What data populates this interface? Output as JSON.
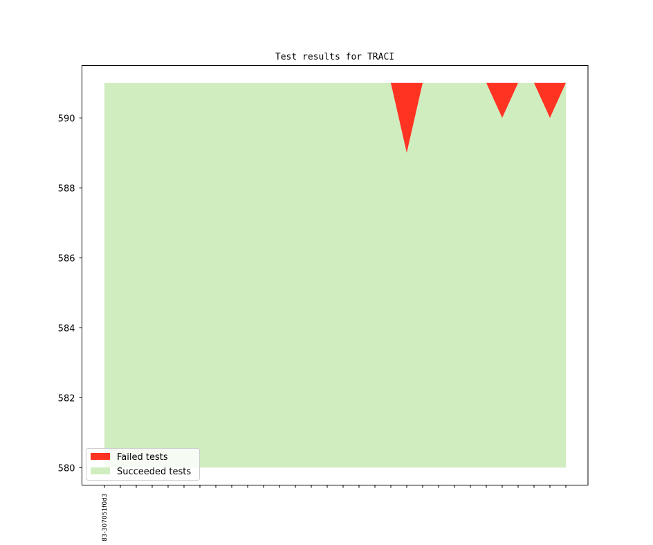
{
  "chart_data": {
    "type": "area",
    "title": "Test results for TRACI",
    "xlabel": "",
    "ylabel": "",
    "ylim": [
      579.5,
      591.5
    ],
    "yticks": [
      580,
      582,
      584,
      586,
      588,
      590
    ],
    "x_count": 30,
    "x_tick_labels": [
      "83-307051f0d3"
    ],
    "legend_position": "lower-left",
    "grid": false,
    "series": [
      {
        "name": "Failed tests",
        "color": "#ff3322",
        "values": [
          0,
          0,
          0,
          0,
          0,
          0,
          0,
          0,
          0,
          0,
          0,
          0,
          0,
          0,
          0,
          0,
          0,
          0,
          0,
          2,
          0,
          0,
          0,
          0,
          0,
          1,
          0,
          0,
          1,
          0
        ]
      },
      {
        "name": "Succeeded tests",
        "color": "#d0edc0",
        "values": [
          591,
          591,
          591,
          591,
          591,
          591,
          591,
          591,
          591,
          591,
          591,
          591,
          591,
          591,
          591,
          591,
          591,
          591,
          591,
          589,
          591,
          591,
          591,
          591,
          591,
          590,
          591,
          591,
          590,
          591
        ]
      }
    ],
    "total_tests": 591,
    "baseline": 580
  }
}
